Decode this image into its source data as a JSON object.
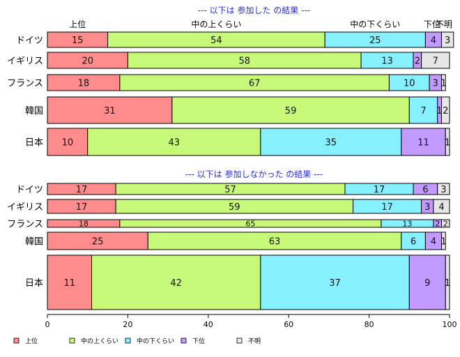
{
  "chart_data": {
    "type": "bar",
    "orientation": "horizontal",
    "stacked": true,
    "xlim": [
      0,
      100
    ],
    "xticks": [
      0,
      20,
      40,
      60,
      80,
      100
    ],
    "legend_position": "bottom",
    "series_names": [
      "上位",
      "中の上くらい",
      "中の下くらい",
      "下位",
      "不明"
    ],
    "colors": [
      "#ff8c8c",
      "#c8f878",
      "#87f0ff",
      "#c39aff",
      "#e6e6e6"
    ],
    "column_headers": [
      "上位",
      "中の上くらい",
      "中の下くらい",
      "下位",
      "不明"
    ],
    "panels": [
      {
        "title": "--- 以下は 参加した の結果 ---",
        "categories": [
          "ドイツ",
          "イギリス",
          "フランス",
          "韓国",
          "日本"
        ],
        "values": [
          [
            15,
            54,
            25,
            4,
            3
          ],
          [
            20,
            58,
            13,
            2,
            7
          ],
          [
            18,
            67,
            10,
            3,
            1
          ],
          [
            31,
            59,
            7,
            1,
            2
          ],
          [
            10,
            43,
            35,
            11,
            1
          ]
        ]
      },
      {
        "title": "--- 以下は 参加しなかった の結果 ---",
        "categories": [
          "ドイツ",
          "イギリス",
          "フランス",
          "韓国",
          "日本"
        ],
        "values": [
          [
            17,
            57,
            17,
            6,
            3
          ],
          [
            17,
            59,
            17,
            3,
            4
          ],
          [
            18,
            65,
            13,
            2,
            2
          ],
          [
            25,
            63,
            6,
            4,
            1
          ],
          [
            11,
            42,
            37,
            9,
            1
          ]
        ]
      }
    ]
  }
}
